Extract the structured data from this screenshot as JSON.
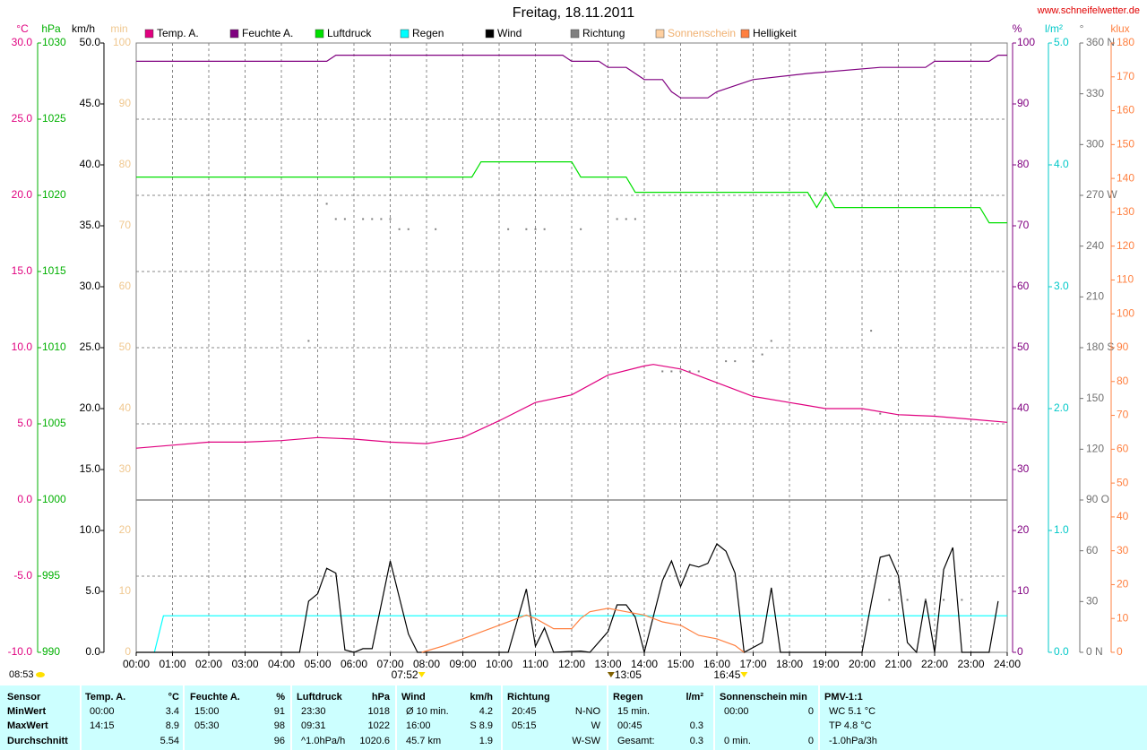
{
  "header": {
    "title": "Freitag, 18.11.2011",
    "url": "www.schneifelwetter.de",
    "time": "08:53"
  },
  "chart_data": {
    "type": "line",
    "xlim": [
      0,
      24
    ],
    "xticks": [
      {
        "value": 0,
        "label": "00:00"
      },
      {
        "value": 1,
        "label": "01:00"
      },
      {
        "value": 2,
        "label": "02:00"
      },
      {
        "value": 3,
        "label": "03:00"
      },
      {
        "value": 4,
        "label": "04:00"
      },
      {
        "value": 5,
        "label": "05:00"
      },
      {
        "value": 6,
        "label": "06:00"
      },
      {
        "value": 7,
        "label": "07:00"
      },
      {
        "value": 8,
        "label": "08:00"
      },
      {
        "value": 9,
        "label": "09:00"
      },
      {
        "value": 10,
        "label": "10:00"
      },
      {
        "value": 11,
        "label": "11:00"
      },
      {
        "value": 12,
        "label": "12:00"
      },
      {
        "value": 13,
        "label": "13:00"
      },
      {
        "value": 14,
        "label": "14:00"
      },
      {
        "value": 15,
        "label": "15:00"
      },
      {
        "value": 16,
        "label": "16:00"
      },
      {
        "value": 17,
        "label": "17:00"
      },
      {
        "value": 18,
        "label": "18:00"
      },
      {
        "value": 19,
        "label": "19:00"
      },
      {
        "value": 20,
        "label": "20:00"
      },
      {
        "value": 21,
        "label": "21:00"
      },
      {
        "value": 22,
        "label": "22:00"
      },
      {
        "value": 23,
        "label": "23:00"
      },
      {
        "value": 24,
        "label": "24:00"
      }
    ],
    "grid": true,
    "axes": [
      {
        "title": "°C",
        "color": "#e0007f",
        "ylim": [
          -10,
          30
        ],
        "yticks": [
          {
            "value": 30,
            "label": "30.0"
          },
          {
            "value": 25,
            "label": "25.0"
          },
          {
            "value": 20,
            "label": "20.0"
          },
          {
            "value": 15,
            "label": "15.0"
          },
          {
            "value": 10,
            "label": "10.0"
          },
          {
            "value": 5,
            "label": "5.0"
          },
          {
            "value": 0,
            "label": "0.0"
          },
          {
            "value": -5,
            "label": "-5.0"
          },
          {
            "value": -10,
            "label": "-10.0"
          }
        ]
      },
      {
        "title": "hPa",
        "color": "#00b000",
        "ylim": [
          990,
          1030
        ],
        "yticks": [
          1030,
          1025,
          1020,
          1015,
          1010,
          1005,
          1000,
          995,
          990
        ]
      },
      {
        "title": "km/h",
        "color": "#000000",
        "ylim": [
          0,
          50
        ],
        "yticks": [
          {
            "value": 50,
            "label": "50.0"
          },
          {
            "value": 45,
            "label": "45.0"
          },
          {
            "value": 40,
            "label": "40.0"
          },
          {
            "value": 35,
            "label": "35.0"
          },
          {
            "value": 30,
            "label": "30.0"
          },
          {
            "value": 25,
            "label": "25.0"
          },
          {
            "value": 20,
            "label": "20.0"
          },
          {
            "value": 15,
            "label": "15.0"
          },
          {
            "value": 10,
            "label": "10.0"
          },
          {
            "value": 5,
            "label": "5.0"
          },
          {
            "value": 0,
            "label": "0.0"
          }
        ]
      },
      {
        "title": "min",
        "color": "#f0c890",
        "ylim": [
          0,
          100
        ],
        "yticks": [
          100,
          90,
          80,
          70,
          60,
          50,
          40,
          30,
          20,
          10,
          0
        ]
      },
      {
        "title": "%",
        "color": "#800080",
        "ylim": [
          0,
          100
        ],
        "yticks": [
          100,
          90,
          80,
          70,
          60,
          50,
          40,
          30,
          20,
          10,
          0
        ]
      },
      {
        "title": "l/m²",
        "color": "#00c8c8",
        "ylim": [
          0,
          5
        ],
        "yticks": [
          {
            "value": 5,
            "label": "5.0"
          },
          {
            "value": 4,
            "label": "4.0"
          },
          {
            "value": 3,
            "label": "3.0"
          },
          {
            "value": 2,
            "label": "2.0"
          },
          {
            "value": 1,
            "label": "1.0"
          },
          {
            "value": 0,
            "label": "0.0"
          }
        ]
      },
      {
        "title": "°",
        "color": "#707070",
        "ylim": [
          0,
          360
        ],
        "yticks": [
          {
            "value": 360,
            "label": "360 N"
          },
          330,
          300,
          {
            "value": 270,
            "label": "270 W"
          },
          240,
          210,
          {
            "value": 180,
            "label": "180 S"
          },
          150,
          120,
          {
            "value": 90,
            "label": "90 O"
          },
          60,
          30,
          {
            "value": 0,
            "label": "0 N"
          }
        ]
      },
      {
        "title": "klux",
        "color": "#ff8040",
        "ylim": [
          0,
          180
        ],
        "yticks": [
          180,
          170,
          160,
          150,
          140,
          130,
          120,
          110,
          100,
          90,
          80,
          70,
          60,
          50,
          40,
          30,
          20,
          10,
          0
        ]
      }
    ],
    "series": [
      {
        "name": "Temp. A.",
        "color": "#e0007f",
        "axis": 0,
        "x": [
          0,
          1,
          2,
          3,
          4,
          5,
          6,
          7,
          8,
          9,
          10,
          11,
          12,
          13,
          14,
          14.25,
          15,
          16,
          17,
          18,
          19,
          20,
          21,
          22,
          23,
          24
        ],
        "values": [
          3.4,
          3.6,
          3.8,
          3.8,
          3.9,
          4.1,
          4.0,
          3.8,
          3.7,
          4.1,
          5.2,
          6.4,
          6.9,
          8.2,
          8.8,
          8.9,
          8.6,
          7.7,
          6.8,
          6.4,
          6.0,
          6.0,
          5.6,
          5.5,
          5.3,
          5.1
        ]
      },
      {
        "name": "Feuchte A.",
        "color": "#800080",
        "axis": 4,
        "x": [
          0,
          5.25,
          5.5,
          11.75,
          12,
          12.75,
          13,
          13.5,
          14,
          14.5,
          14.75,
          15,
          15.75,
          16,
          16.5,
          17,
          18.5,
          20.5,
          21.75,
          22,
          23.5,
          23.75,
          24
        ],
        "values": [
          97,
          97,
          98,
          98,
          97,
          97,
          96,
          96,
          94,
          94,
          92,
          91,
          91,
          92,
          93,
          94,
          95,
          96,
          96,
          97,
          97,
          98,
          98
        ]
      },
      {
        "name": "Luftdruck",
        "color": "#00e000",
        "axis": 1,
        "x": [
          0,
          9.25,
          9.5,
          12,
          12.25,
          13.5,
          13.75,
          18.5,
          18.75,
          19,
          19.25,
          23.25,
          23.5,
          24
        ],
        "values": [
          1021.2,
          1021.2,
          1022.2,
          1022.2,
          1021.2,
          1021.2,
          1020.2,
          1020.2,
          1019.2,
          1020.2,
          1019.2,
          1019.2,
          1018.2,
          1018.2
        ]
      },
      {
        "name": "Regen",
        "color": "#00ffff",
        "axis": 5,
        "x": [
          0.5,
          0.75,
          24
        ],
        "values": [
          0,
          0.3,
          0.3
        ]
      },
      {
        "name": "Wind",
        "color": "#000000",
        "axis": 2,
        "x": [
          0,
          4.5,
          4.75,
          5,
          5.25,
          5.5,
          5.75,
          6,
          6.25,
          6.5,
          7,
          7.5,
          7.75,
          10.25,
          10.75,
          11,
          11.25,
          11.5,
          12.25,
          12.5,
          13,
          13.25,
          13.5,
          13.75,
          14,
          14.5,
          14.75,
          15,
          15.25,
          15.5,
          15.75,
          16,
          16.25,
          16.5,
          16.75,
          17.25,
          17.5,
          17.75,
          20,
          20.25,
          20.5,
          20.75,
          21,
          21.25,
          21.5,
          21.75,
          22,
          22.25,
          22.5,
          22.75,
          23.5,
          23.75
        ],
        "values": [
          0,
          0,
          4.2,
          4.8,
          6.9,
          6.5,
          0.2,
          0,
          0.3,
          0.3,
          7.5,
          1.5,
          0,
          0,
          5.2,
          0.5,
          2.0,
          0,
          0.1,
          0,
          1.7,
          3.9,
          3.9,
          2.9,
          0,
          5.9,
          7.5,
          5.4,
          7.2,
          7.0,
          7.3,
          8.9,
          8.3,
          6.5,
          0,
          0.8,
          5.3,
          0,
          0,
          4.0,
          7.8,
          8.0,
          6.3,
          0.8,
          0,
          4.4,
          0,
          6.8,
          8.6,
          0,
          0,
          4.2
        ]
      },
      {
        "name": "Richtung",
        "color": "#808080",
        "axis": 6,
        "mode": "markers",
        "x": [
          4.75,
          5.25,
          5.5,
          5.75,
          6.25,
          6.5,
          6.75,
          7,
          7.25,
          7.5,
          8.25,
          10.25,
          10.75,
          11,
          11.25,
          12.25,
          13.25,
          13.5,
          13.75,
          14.5,
          14.75,
          15,
          15.25,
          15.5,
          16.25,
          16.5,
          17,
          17.25,
          17.5,
          20.25,
          20.5,
          20.75,
          21.25,
          21.75,
          22.25,
          22.75
        ],
        "values": [
          184,
          265,
          256,
          256,
          256,
          256,
          256,
          256,
          250,
          250,
          250,
          250,
          250,
          250,
          250,
          250,
          256,
          256,
          256,
          166,
          166,
          166,
          166,
          166,
          172,
          172,
          172,
          176,
          184,
          190,
          141,
          31,
          31,
          31,
          31,
          31
        ]
      },
      {
        "name": "Sonnenschein",
        "color": "#ffd0a0",
        "axis": 3,
        "x": [],
        "values": []
      },
      {
        "name": "Helligkeit",
        "color": "#ff8040",
        "axis": 7,
        "x": [
          7.8667,
          8.5,
          9,
          9.5,
          10,
          10.5,
          10.75,
          11,
          11.5,
          12,
          12.25,
          12.5,
          13,
          13.5,
          14,
          14.5,
          15,
          15.5,
          16,
          16.5,
          16.75
        ],
        "values": [
          0,
          2,
          4,
          6,
          8,
          10,
          11,
          10,
          7,
          7,
          10,
          12,
          13,
          12,
          11,
          9,
          8,
          5,
          4,
          2,
          0
        ]
      }
    ],
    "annotations": [
      {
        "x": 7.8667,
        "label": "07:52"
      },
      {
        "x": 13.0833,
        "label": "13:05"
      },
      {
        "x": 16.75,
        "label": "16:45"
      }
    ]
  },
  "table": {
    "row_labels": [
      "Sensor",
      "MinWert",
      "MaxWert",
      "Durchschnitt"
    ],
    "columns": [
      {
        "title": "Temp. A.",
        "unit": "°C",
        "rows": [
          {
            "left": "00:00",
            "right": "3.4"
          },
          {
            "left": "14:15",
            "right": "8.9"
          },
          {
            "right": "5.54"
          }
        ]
      },
      {
        "title": "Feuchte A.",
        "unit": "%",
        "rows": [
          {
            "left": "15:00",
            "right": "91"
          },
          {
            "left": "05:30",
            "right": "98"
          },
          {
            "right": "96"
          }
        ]
      },
      {
        "title": "Luftdruck",
        "unit": "hPa",
        "rows": [
          {
            "left": "23:30",
            "right": "1018"
          },
          {
            "left": "09:31",
            "right": "1022"
          },
          {
            "left": "^1.0hPa/h",
            "right": "1020.6"
          }
        ]
      },
      {
        "title": "Wind",
        "unit": "km/h",
        "rows": [
          {
            "left": "Ø 10 min.",
            "right": "4.2"
          },
          {
            "left": "16:00",
            "right": "S 8.9"
          },
          {
            "left": "45.7 km",
            "right": "1.9"
          }
        ]
      },
      {
        "title": "Richtung",
        "rows": [
          {
            "left": "20:45",
            "right": "N-NO"
          },
          {
            "left": "05:15",
            "right": "W"
          },
          {
            "right": "W-SW"
          }
        ]
      },
      {
        "title": "Regen",
        "unit": "l/m²",
        "rows": [
          {
            "left": "15 min."
          },
          {
            "left": "00:45",
            "right": "0.3"
          },
          {
            "left": "Gesamt:",
            "right": "0.3"
          }
        ]
      },
      {
        "title": "Sonnenschein min",
        "rows": [
          {
            "left": "00:00",
            "right": "0"
          },
          {},
          {
            "left": "0 min.",
            "right": "0"
          }
        ]
      },
      {
        "title": "PMV-1:1",
        "rows": [
          {
            "left": "WC 5.1 °C"
          },
          {
            "left": "TP 4.8 °C"
          },
          {
            "left": "-1.0hPa/3h"
          }
        ]
      }
    ]
  }
}
